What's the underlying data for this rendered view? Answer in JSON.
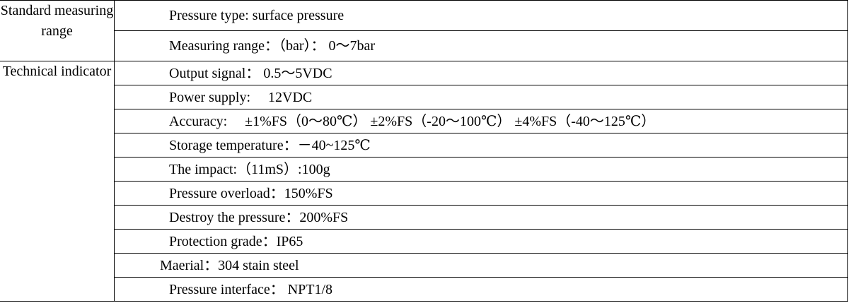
{
  "sections": [
    {
      "category": "Standard measuring range",
      "rows": [
        {
          "text": "Pressure type: surface pressure"
        },
        {
          "text": "Measuring range：（bar）： 0～7bar"
        }
      ]
    },
    {
      "category": "Technical indicator",
      "rows": [
        {
          "text": "Output signal： 0.5～5VDC"
        },
        {
          "text": "Power supply:　 12VDC"
        },
        {
          "text": "Accuracy:　 ±1%FS（0～80℃） ±2%FS（-20～100℃） ±4%FS（-40～125℃）"
        },
        {
          "text": "Storage temperature：－40~125℃"
        },
        {
          "text": "The impact:（11mS）:100g"
        },
        {
          "text": "Pressure overload：150%FS"
        },
        {
          "text": "Destroy the pressure：200%FS"
        },
        {
          "text": "Protection grade：IP65"
        },
        {
          "text": "Maerial：304 stain steel"
        },
        {
          "text": "Pressure interface： NPT1/8"
        }
      ]
    }
  ]
}
